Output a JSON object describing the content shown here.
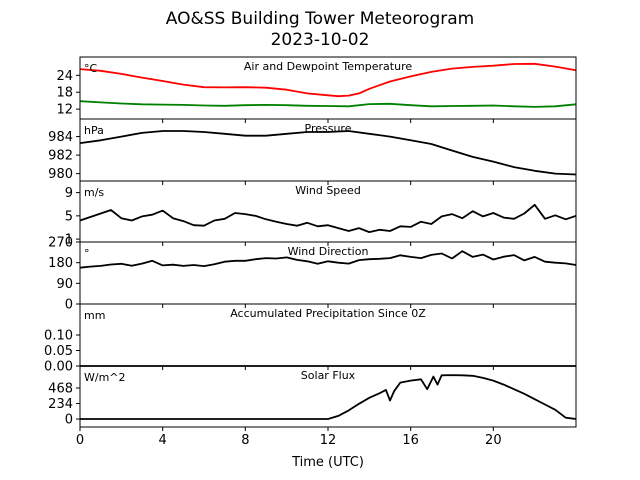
{
  "title_line1": "AO&SS Building Tower Meteorogram",
  "title_line2": "2023-10-02",
  "x_axis": {
    "label": "Time (UTC)",
    "ticks": [
      0,
      4,
      8,
      12,
      16,
      20
    ],
    "range": [
      0,
      24
    ]
  },
  "chart_data": [
    {
      "type": "line",
      "panel": "temperature",
      "title": "Air and Dewpoint Temperature",
      "unit": "°C",
      "yticks": [
        12,
        18,
        24
      ],
      "ylim": [
        8.5,
        30.5
      ],
      "series": [
        {
          "color": "#ff0000",
          "x": [
            0,
            1,
            2,
            3,
            4,
            5,
            6,
            7,
            8,
            9,
            10,
            11,
            12,
            12.5,
            13,
            13.5,
            14,
            15,
            16,
            17,
            18,
            19,
            20,
            21,
            22,
            23,
            24
          ],
          "y": [
            26.2,
            25.6,
            24.5,
            23.2,
            22.0,
            20.7,
            19.8,
            19.7,
            19.8,
            19.6,
            18.9,
            17.6,
            16.9,
            16.6,
            16.8,
            17.6,
            19.2,
            21.8,
            23.6,
            25.2,
            26.4,
            27.0,
            27.4,
            28.0,
            28.1,
            27.1,
            25.8
          ]
        },
        {
          "color": "#008000",
          "x": [
            0,
            1,
            2,
            3,
            4,
            5,
            6,
            7,
            8,
            9,
            10,
            11,
            12,
            13,
            14,
            15,
            16,
            17,
            18,
            19,
            20,
            21,
            22,
            23,
            24
          ],
          "y": [
            14.8,
            14.4,
            14.0,
            13.7,
            13.6,
            13.5,
            13.3,
            13.2,
            13.4,
            13.5,
            13.4,
            13.2,
            13.1,
            13.0,
            13.8,
            13.9,
            13.4,
            13.0,
            13.1,
            13.2,
            13.3,
            13.0,
            12.8,
            13.0,
            13.7
          ]
        }
      ]
    },
    {
      "type": "line",
      "panel": "pressure",
      "title": "Pressure",
      "unit": "hPa",
      "yticks": [
        980,
        982,
        984
      ],
      "ylim": [
        979.2,
        985.9
      ],
      "series": [
        {
          "color": "#000000",
          "x": [
            0,
            1,
            2,
            3,
            4,
            5,
            6,
            7,
            8,
            9,
            10,
            11,
            12,
            13,
            14,
            15,
            16,
            17,
            18,
            19,
            20,
            21,
            22,
            23,
            24
          ],
          "y": [
            983.3,
            983.6,
            984.0,
            984.4,
            984.6,
            984.6,
            984.5,
            984.3,
            984.1,
            984.1,
            984.3,
            984.5,
            984.5,
            984.6,
            984.3,
            984.0,
            983.6,
            983.2,
            982.5,
            981.8,
            981.3,
            980.7,
            980.3,
            980.0,
            979.9
          ]
        }
      ]
    },
    {
      "type": "line",
      "panel": "wind_speed",
      "title": "Wind Speed",
      "unit": "m/s",
      "yticks": [
        1,
        5,
        9
      ],
      "ylim": [
        0.5,
        11.0
      ],
      "series": [
        {
          "color": "#000000",
          "x": [
            0,
            0.5,
            1,
            1.5,
            2,
            2.5,
            3,
            3.5,
            4,
            4.5,
            5,
            5.5,
            6,
            6.5,
            7,
            7.5,
            8,
            8.5,
            9,
            9.5,
            10,
            10.5,
            11,
            11.5,
            12,
            12.5,
            13,
            13.5,
            14,
            14.5,
            15,
            15.5,
            16,
            16.5,
            17,
            17.5,
            18,
            18.5,
            19,
            19.5,
            20,
            20.5,
            21,
            21.5,
            22,
            22.5,
            23,
            23.5,
            24
          ],
          "y": [
            4.2,
            4.8,
            5.4,
            6.0,
            4.6,
            4.2,
            4.9,
            5.2,
            5.9,
            4.6,
            4.1,
            3.4,
            3.3,
            4.2,
            4.5,
            5.5,
            5.3,
            5.0,
            4.4,
            4.0,
            3.6,
            3.3,
            3.8,
            3.2,
            3.4,
            2.9,
            2.4,
            2.9,
            2.2,
            2.6,
            2.4,
            3.2,
            3.1,
            4.0,
            3.6,
            4.9,
            5.3,
            4.6,
            5.8,
            4.9,
            5.5,
            4.7,
            4.5,
            5.4,
            6.9,
            4.5,
            5.1,
            4.4,
            5.0
          ]
        }
      ]
    },
    {
      "type": "line",
      "panel": "wind_direction",
      "title": "Wind Direction",
      "unit": "°",
      "yticks": [
        0,
        90,
        180,
        270
      ],
      "ylim": [
        0,
        270
      ],
      "series": [
        {
          "color": "#000000",
          "x": [
            0,
            0.5,
            1,
            1.5,
            2,
            2.5,
            3,
            3.5,
            4,
            4.5,
            5,
            5.5,
            6,
            6.5,
            7,
            7.5,
            8,
            8.5,
            9,
            9.5,
            10,
            10.5,
            11,
            11.5,
            12,
            12.5,
            13,
            13.5,
            14,
            14.5,
            15,
            15.5,
            16,
            16.5,
            17,
            17.5,
            18,
            18.5,
            19,
            19.5,
            20,
            20.5,
            21,
            21.5,
            22,
            22.5,
            23,
            23.5,
            24
          ],
          "y": [
            158,
            163,
            166,
            172,
            175,
            167,
            176,
            188,
            168,
            171,
            166,
            170,
            165,
            173,
            184,
            188,
            188,
            195,
            200,
            198,
            203,
            192,
            186,
            175,
            186,
            180,
            176,
            191,
            195,
            197,
            200,
            212,
            205,
            200,
            214,
            220,
            198,
            230,
            205,
            215,
            194,
            206,
            213,
            190,
            205,
            184,
            180,
            177,
            170
          ]
        }
      ]
    },
    {
      "type": "line",
      "panel": "precipitation",
      "title": "Accumulated Precipitation Since 0Z",
      "unit": "mm",
      "yticks": [
        "0.00",
        "0.05",
        "0.10"
      ],
      "ylim": [
        0,
        0.2
      ],
      "series": [
        {
          "color": "#000000",
          "x": [
            0,
            24
          ],
          "y": [
            0,
            0
          ]
        }
      ]
    },
    {
      "type": "line",
      "panel": "solar_flux",
      "title": "Solar Flux",
      "unit": "W/m^2",
      "yticks": [
        0,
        234,
        468
      ],
      "ylim": [
        -120,
        800
      ],
      "series": [
        {
          "color": "#000000",
          "x": [
            0,
            12,
            12.5,
            13,
            13.5,
            14,
            14.5,
            14.8,
            15.0,
            15.2,
            15.5,
            16,
            16.5,
            16.8,
            17.1,
            17.3,
            17.5,
            18,
            18.5,
            19,
            19.5,
            20,
            20.5,
            21,
            21.5,
            22,
            22.5,
            23,
            23.5,
            24
          ],
          "y": [
            0,
            0,
            48,
            130,
            230,
            320,
            390,
            440,
            280,
            420,
            550,
            580,
            600,
            450,
            640,
            520,
            660,
            662,
            660,
            652,
            620,
            580,
            520,
            450,
            380,
            300,
            220,
            140,
            20,
            0
          ]
        }
      ]
    }
  ]
}
